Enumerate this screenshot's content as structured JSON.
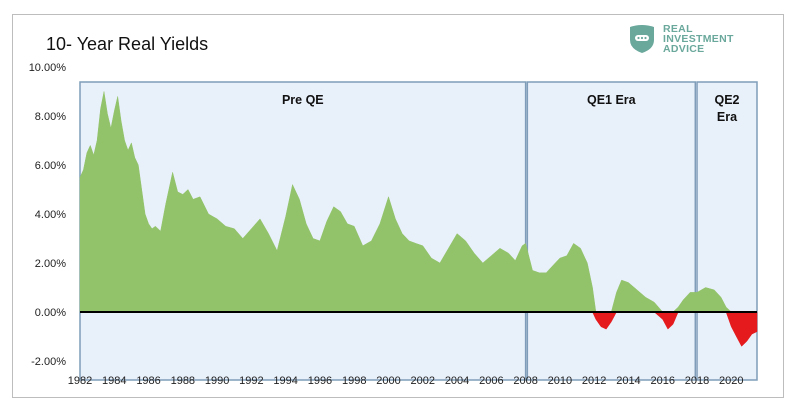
{
  "logo": {
    "icon": "shield-icon",
    "lines": [
      "REAL",
      "INVESTMENT",
      "ADVICE"
    ],
    "color": "#6aa89c"
  },
  "chart_data": {
    "type": "area",
    "title": "10- Year Real Yields",
    "xlabel": "",
    "ylabel": "",
    "xlim": [
      1982,
      2021.5
    ],
    "ylim": [
      -2,
      10
    ],
    "y_ticks": [
      "-2.00%",
      "0.00%",
      "2.00%",
      "4.00%",
      "6.00%",
      "8.00%",
      "10.00%"
    ],
    "x_ticks": [
      "1982",
      "1984",
      "1986",
      "1988",
      "1990",
      "1992",
      "1994",
      "1996",
      "1998",
      "2000",
      "2002",
      "2004",
      "2006",
      "2008",
      "2010",
      "2012",
      "2014",
      "2016",
      "2018",
      "2020"
    ],
    "colors": {
      "positive": "#92c36a",
      "negative": "#e41a1c",
      "era_fill": "#e8f0fa",
      "era_border": "#7f9db9",
      "zero_line": "#000000"
    },
    "eras": [
      {
        "label": "Pre QE",
        "start": 1982,
        "end": 2008
      },
      {
        "label": "QE1 Era",
        "start": 2008.1,
        "end": 2017.9
      },
      {
        "label": "QE2 Era",
        "label_lines": [
          "QE2",
          "Era"
        ],
        "start": 2018,
        "end": 2021.5
      }
    ],
    "series": [
      {
        "x": [
          1982.0,
          1982.2,
          1982.4,
          1982.6,
          1982.8,
          1983.0,
          1983.2,
          1983.4,
          1983.6,
          1983.8,
          1984.0,
          1984.2,
          1984.4,
          1984.6,
          1984.8,
          1985.0,
          1985.2,
          1985.4,
          1985.6,
          1985.8,
          1986.0,
          1986.2,
          1986.4,
          1986.7,
          1987.0,
          1987.4,
          1987.7,
          1988.0,
          1988.3,
          1988.6,
          1989.0,
          1989.5,
          1990.0,
          1990.5,
          1991.0,
          1991.5,
          1992.0,
          1992.5,
          1993.0,
          1993.5,
          1994.0,
          1994.4,
          1994.8,
          1995.2,
          1995.6,
          1996.0,
          1996.4,
          1996.8,
          1997.2,
          1997.6,
          1998.0,
          1998.5,
          1999.0,
          1999.5,
          2000.0,
          2000.4,
          2000.8,
          2001.2,
          2001.6,
          2002.0,
          2002.5,
          2003.0,
          2003.5,
          2004.0,
          2004.5,
          2005.0,
          2005.5,
          2006.0,
          2006.5,
          2007.0,
          2007.4,
          2007.8,
          2008.0,
          2008.4,
          2008.8,
          2009.2,
          2009.6,
          2010.0,
          2010.4,
          2010.8,
          2011.2,
          2011.6,
          2011.9,
          2012.1,
          2012.4,
          2012.7,
          2013.0,
          2013.3,
          2013.6,
          2014.0,
          2014.5,
          2015.0,
          2015.5,
          2016.0,
          2016.3,
          2016.6,
          2016.9,
          2017.2,
          2017.6,
          2018.0,
          2018.5,
          2019.0,
          2019.4,
          2019.7,
          2020.0,
          2020.3,
          2020.6,
          2020.9,
          2021.2,
          2021.5
        ],
        "values": [
          5.5,
          5.8,
          6.5,
          6.8,
          6.4,
          7.0,
          8.3,
          9.0,
          8.1,
          7.5,
          8.2,
          8.8,
          7.8,
          7.0,
          6.6,
          6.9,
          6.3,
          6.0,
          5.0,
          4.0,
          3.6,
          3.4,
          3.5,
          3.3,
          4.4,
          5.7,
          4.9,
          4.8,
          5.0,
          4.6,
          4.7,
          4.0,
          3.8,
          3.5,
          3.4,
          3.0,
          3.4,
          3.8,
          3.2,
          2.5,
          3.9,
          5.2,
          4.6,
          3.6,
          3.0,
          2.9,
          3.7,
          4.3,
          4.1,
          3.6,
          3.5,
          2.7,
          2.9,
          3.6,
          4.7,
          3.8,
          3.2,
          2.9,
          2.8,
          2.7,
          2.2,
          2.0,
          2.6,
          3.2,
          2.9,
          2.4,
          2.0,
          2.3,
          2.6,
          2.4,
          2.1,
          2.7,
          2.8,
          1.7,
          1.6,
          1.6,
          1.9,
          2.2,
          2.3,
          2.8,
          2.6,
          2.0,
          1.0,
          -0.3,
          -0.6,
          -0.7,
          -0.4,
          0.8,
          1.3,
          1.2,
          0.9,
          0.6,
          0.4,
          -0.3,
          -0.7,
          -0.5,
          0.2,
          0.5,
          0.8,
          0.8,
          1.0,
          0.9,
          0.6,
          0.2,
          -0.6,
          -1.0,
          -1.4,
          -1.2,
          -0.9,
          -0.8
        ]
      }
    ]
  }
}
